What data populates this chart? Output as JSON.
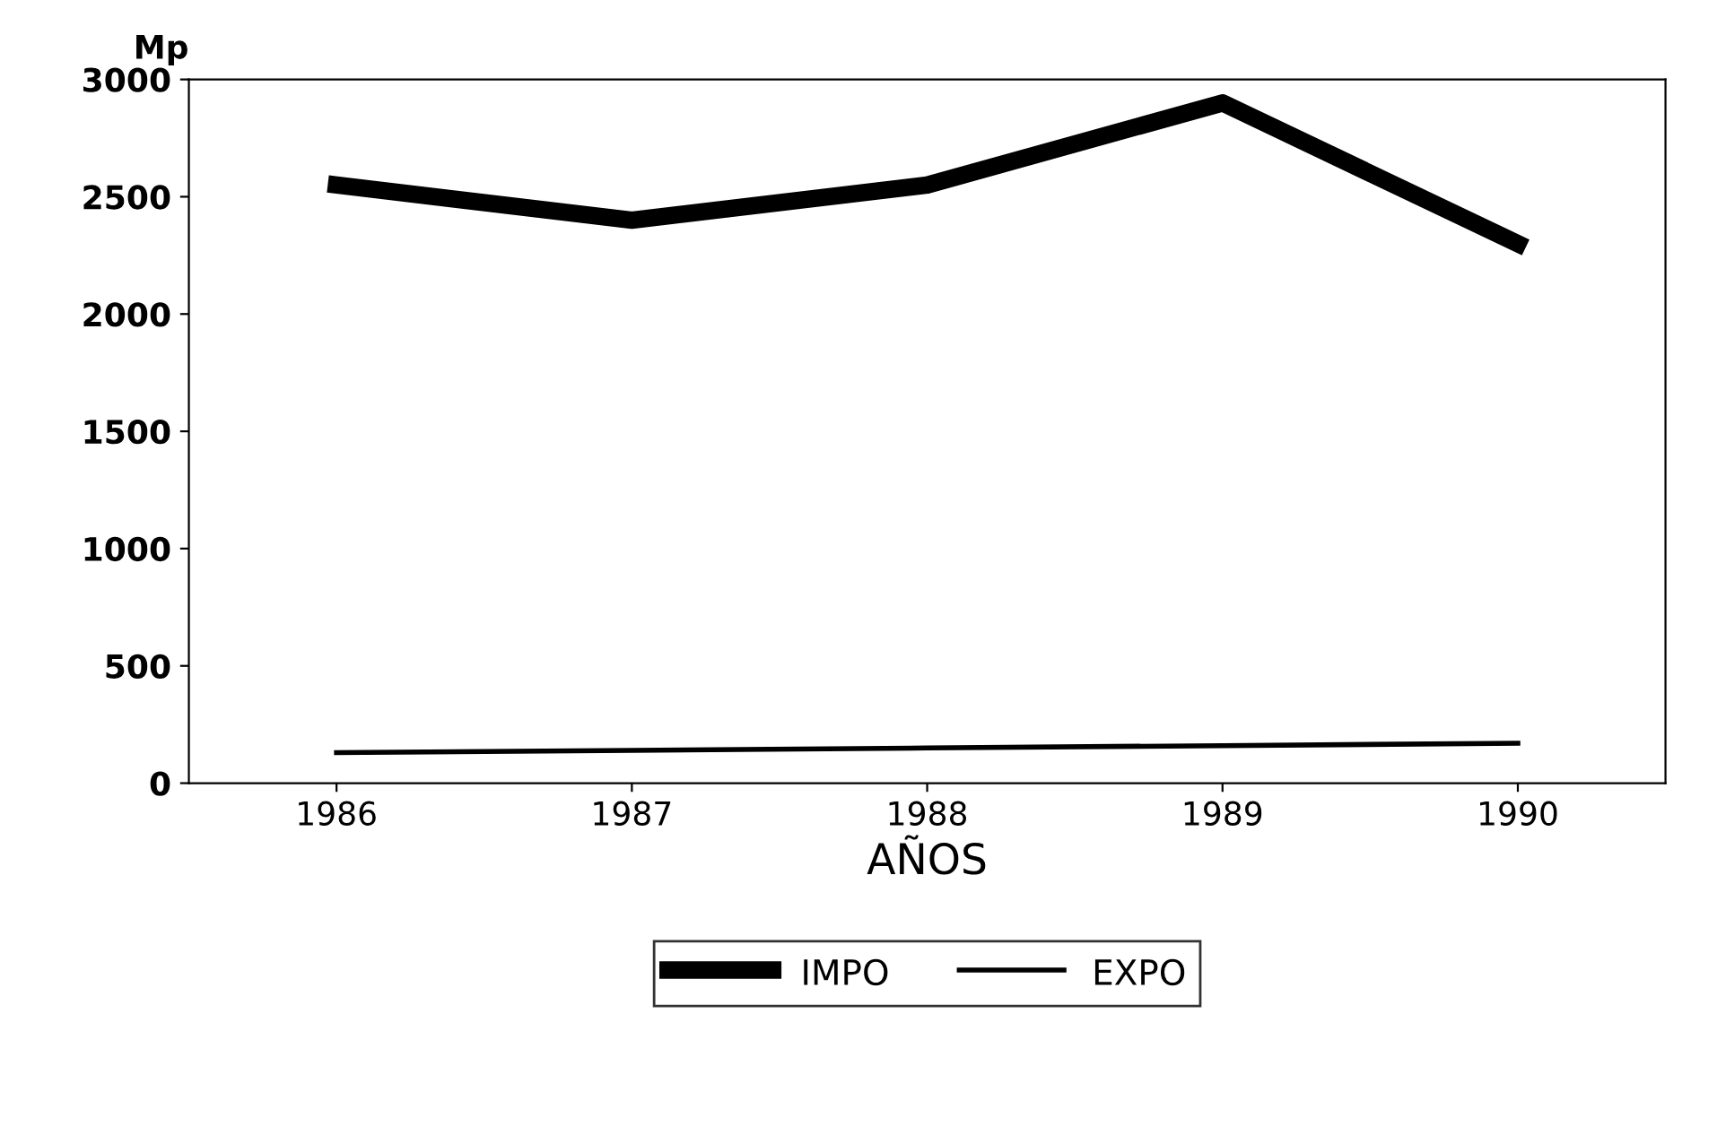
{
  "chart_data": {
    "type": "line",
    "ylabel": "Mp",
    "xlabel": "AÑOS",
    "categories": [
      "1986",
      "1987",
      "1988",
      "1989",
      "1990"
    ],
    "series": [
      {
        "name": "IMPO",
        "color": "#000000",
        "values": [
          2550,
          2400,
          2550,
          2900,
          2300
        ]
      },
      {
        "name": "EXPO",
        "color": "#000000",
        "values": [
          130,
          140,
          150,
          160,
          170
        ]
      }
    ],
    "ylim": [
      0,
      3000
    ],
    "yticks": [
      0,
      500,
      1000,
      1500,
      2000,
      2500,
      3000
    ],
    "grid": false,
    "legend": "bottom",
    "marker": "none",
    "line_style": "solid"
  }
}
